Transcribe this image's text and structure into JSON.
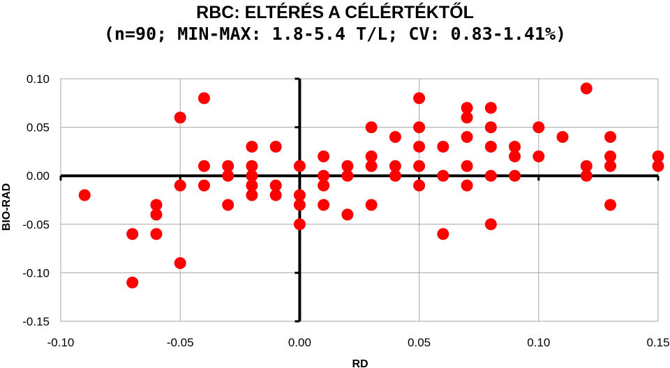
{
  "chart_data": {
    "type": "scatter",
    "title": "RBC: ELTÉRÉS A CÉLÉRTÉKTŐL",
    "subtitle": "(n=90; MIN-MAX: 1.8-5.4 T/L; CV: 0.83-1.41%)",
    "xlabel": "RD",
    "ylabel": "BIO-RAD",
    "xlim": [
      -0.1,
      0.15
    ],
    "ylim": [
      -0.15,
      0.1
    ],
    "x_ticks": [
      "-0.10",
      "-0.05",
      "0.00",
      "0.05",
      "0.10",
      "0.15"
    ],
    "y_ticks": [
      "0.10",
      "0.05",
      "0.00",
      "-0.05",
      "-0.10",
      "-0.15"
    ],
    "grid": true,
    "point_color": "#ff0000",
    "points": [
      [
        -0.09,
        -0.02
      ],
      [
        -0.07,
        -0.06
      ],
      [
        -0.07,
        -0.11
      ],
      [
        -0.06,
        -0.03
      ],
      [
        -0.06,
        -0.04
      ],
      [
        -0.06,
        -0.06
      ],
      [
        -0.05,
        0.06
      ],
      [
        -0.05,
        -0.01
      ],
      [
        -0.05,
        -0.09
      ],
      [
        -0.04,
        0.08
      ],
      [
        -0.04,
        0.01
      ],
      [
        -0.04,
        -0.01
      ],
      [
        -0.03,
        0.01
      ],
      [
        -0.03,
        0.0
      ],
      [
        -0.03,
        -0.03
      ],
      [
        -0.02,
        0.03
      ],
      [
        -0.02,
        0.01
      ],
      [
        -0.02,
        0.0
      ],
      [
        -0.02,
        -0.01
      ],
      [
        -0.02,
        -0.02
      ],
      [
        -0.01,
        0.03
      ],
      [
        -0.01,
        -0.01
      ],
      [
        -0.01,
        -0.02
      ],
      [
        0.0,
        0.01
      ],
      [
        0.0,
        -0.02
      ],
      [
        0.0,
        -0.03
      ],
      [
        0.0,
        -0.05
      ],
      [
        0.01,
        0.02
      ],
      [
        0.01,
        0.0
      ],
      [
        0.01,
        -0.01
      ],
      [
        0.01,
        -0.03
      ],
      [
        0.02,
        0.01
      ],
      [
        0.02,
        0.0
      ],
      [
        0.02,
        -0.04
      ],
      [
        0.03,
        0.05
      ],
      [
        0.03,
        0.02
      ],
      [
        0.03,
        0.01
      ],
      [
        0.03,
        -0.03
      ],
      [
        0.04,
        0.04
      ],
      [
        0.04,
        0.01
      ],
      [
        0.04,
        0.0
      ],
      [
        0.05,
        0.08
      ],
      [
        0.05,
        0.05
      ],
      [
        0.05,
        0.03
      ],
      [
        0.05,
        0.01
      ],
      [
        0.05,
        -0.01
      ],
      [
        0.06,
        0.03
      ],
      [
        0.06,
        0.0
      ],
      [
        0.06,
        -0.06
      ],
      [
        0.07,
        0.07
      ],
      [
        0.07,
        0.06
      ],
      [
        0.07,
        0.04
      ],
      [
        0.07,
        0.01
      ],
      [
        0.07,
        -0.01
      ],
      [
        0.08,
        0.07
      ],
      [
        0.08,
        0.05
      ],
      [
        0.08,
        0.03
      ],
      [
        0.08,
        0.0
      ],
      [
        0.08,
        -0.05
      ],
      [
        0.09,
        0.03
      ],
      [
        0.09,
        0.02
      ],
      [
        0.09,
        0.0
      ],
      [
        0.1,
        0.05
      ],
      [
        0.1,
        0.02
      ],
      [
        0.11,
        0.04
      ],
      [
        0.12,
        0.09
      ],
      [
        0.12,
        0.01
      ],
      [
        0.12,
        0.0
      ],
      [
        0.13,
        0.04
      ],
      [
        0.13,
        0.02
      ],
      [
        0.13,
        0.01
      ],
      [
        0.13,
        -0.03
      ],
      [
        0.15,
        0.02
      ],
      [
        0.15,
        0.01
      ]
    ]
  }
}
